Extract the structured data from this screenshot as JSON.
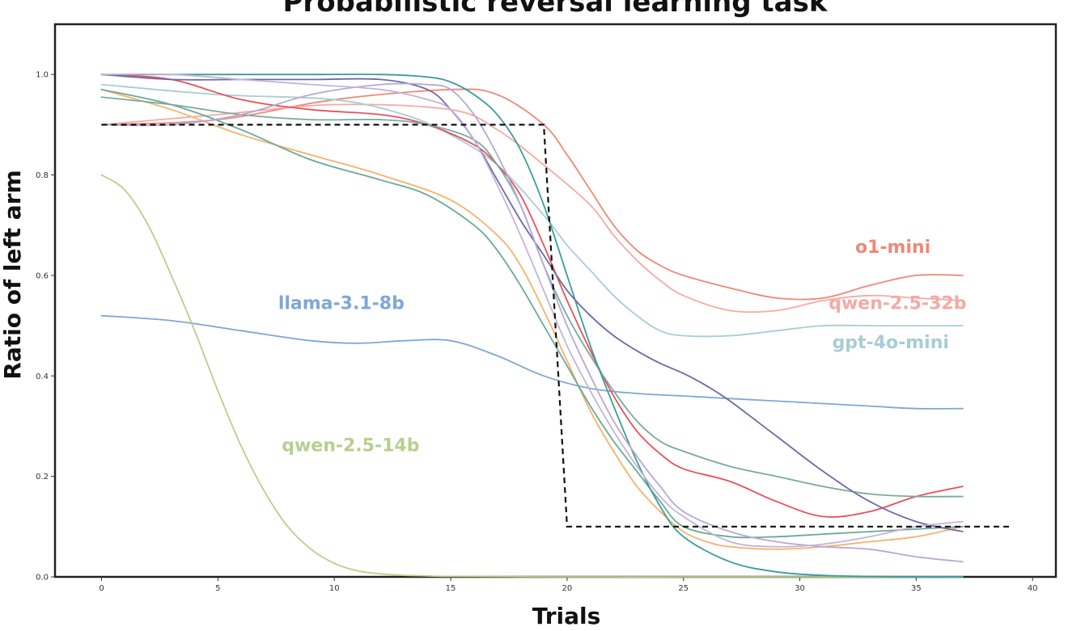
{
  "chart_data": {
    "type": "line",
    "title": "Probabilistic reversal learning task",
    "xlabel": "Trials",
    "ylabel": "Ratio of left arm",
    "xlim": [
      -2,
      41
    ],
    "ylim": [
      0,
      1.1
    ],
    "xticks": [
      0,
      5,
      10,
      15,
      20,
      25,
      30,
      35,
      40
    ],
    "yticks": [
      0.0,
      0.2,
      0.4,
      0.6,
      0.8,
      1.0
    ],
    "xtick_labels": [
      "0",
      "5",
      "10",
      "15",
      "20",
      "25",
      "30",
      "35",
      "40"
    ],
    "ytick_labels": [
      "0.0",
      "0.2",
      "0.4",
      "0.6",
      "0.8",
      "1.0"
    ],
    "grid": false,
    "reference": {
      "style": "dashed",
      "color": "#111111",
      "x": [
        0,
        19,
        20,
        39
      ],
      "y": [
        0.9,
        0.9,
        0.1,
        0.1
      ]
    },
    "series": [
      {
        "name": "o1-mini",
        "color": "#f08878",
        "x": [
          0,
          5,
          10,
          15,
          17,
          19,
          20,
          21,
          22,
          23,
          24,
          25,
          27,
          29,
          31,
          33,
          35,
          37
        ],
        "y": [
          0.9,
          0.91,
          0.95,
          0.97,
          0.96,
          0.9,
          0.84,
          0.77,
          0.7,
          0.65,
          0.62,
          0.6,
          0.575,
          0.555,
          0.555,
          0.58,
          0.6,
          0.6
        ]
      },
      {
        "name": "qwen-2.5-32b",
        "color": "#f4aaa4",
        "x": [
          0,
          5,
          10,
          15,
          17,
          19,
          21,
          22,
          23,
          24,
          25,
          27,
          29,
          31,
          33,
          35,
          37
        ],
        "y": [
          0.9,
          0.92,
          0.94,
          0.93,
          0.89,
          0.82,
          0.74,
          0.68,
          0.63,
          0.59,
          0.56,
          0.53,
          0.53,
          0.55,
          0.56,
          0.555,
          0.55
        ]
      },
      {
        "name": "gpt-4o-mini",
        "color": "#a8cdd4",
        "x": [
          0,
          5,
          10,
          13,
          15,
          17,
          19,
          20,
          21,
          22,
          23,
          24,
          25,
          27,
          29,
          31,
          33,
          35,
          37
        ],
        "y": [
          0.98,
          0.96,
          0.95,
          0.92,
          0.88,
          0.82,
          0.72,
          0.66,
          0.61,
          0.56,
          0.52,
          0.49,
          0.48,
          0.48,
          0.49,
          0.5,
          0.5,
          0.5,
          0.5
        ]
      },
      {
        "name": "llama-3.1-8b",
        "color": "#7fa7d6",
        "x": [
          0,
          3,
          6,
          9,
          11,
          13,
          15,
          17,
          19,
          21,
          23,
          25,
          27,
          29,
          31,
          33,
          35,
          37
        ],
        "y": [
          0.52,
          0.51,
          0.49,
          0.47,
          0.465,
          0.47,
          0.47,
          0.44,
          0.4,
          0.375,
          0.365,
          0.36,
          0.355,
          0.35,
          0.345,
          0.34,
          0.335,
          0.335
        ]
      },
      {
        "name": "qwen-2.5-14b",
        "color": "#b8cf8e",
        "x": [
          0,
          1,
          2,
          3,
          4,
          5,
          6,
          7,
          8,
          9,
          10,
          11,
          12,
          13,
          14,
          15,
          20,
          25,
          30,
          37
        ],
        "y": [
          0.8,
          0.77,
          0.7,
          0.6,
          0.49,
          0.37,
          0.26,
          0.17,
          0.1,
          0.055,
          0.027,
          0.012,
          0.006,
          0.003,
          0.002,
          0.001,
          0.0,
          0.0,
          0.0,
          0.0
        ]
      },
      {
        "name": "",
        "color": "#e8505a",
        "x": [
          0,
          3,
          6,
          9,
          12,
          14,
          16,
          17,
          18,
          19,
          20,
          21,
          22,
          23,
          24,
          25,
          27,
          29,
          31,
          33,
          35,
          37
        ],
        "y": [
          1.0,
          0.99,
          0.95,
          0.93,
          0.92,
          0.9,
          0.86,
          0.82,
          0.76,
          0.66,
          0.55,
          0.45,
          0.36,
          0.29,
          0.245,
          0.215,
          0.19,
          0.15,
          0.12,
          0.13,
          0.16,
          0.18
        ]
      },
      {
        "name": "",
        "color": "#f6b26b",
        "x": [
          0,
          3,
          6,
          9,
          12,
          15,
          17,
          18,
          19,
          20,
          21,
          22,
          23,
          24,
          25,
          26,
          27,
          29,
          31,
          33,
          35,
          37
        ],
        "y": [
          0.97,
          0.93,
          0.88,
          0.84,
          0.8,
          0.75,
          0.68,
          0.62,
          0.53,
          0.43,
          0.33,
          0.25,
          0.18,
          0.13,
          0.09,
          0.07,
          0.06,
          0.055,
          0.06,
          0.07,
          0.08,
          0.1
        ]
      },
      {
        "name": "",
        "color": "#6aaa96",
        "x": [
          0,
          3,
          6,
          9,
          12,
          14,
          16,
          17,
          18,
          19,
          20,
          21,
          22,
          23,
          24,
          25,
          27,
          29,
          31,
          33,
          35,
          37
        ],
        "y": [
          0.97,
          0.94,
          0.89,
          0.83,
          0.79,
          0.76,
          0.7,
          0.65,
          0.58,
          0.5,
          0.42,
          0.34,
          0.27,
          0.21,
          0.15,
          0.1,
          0.08,
          0.08,
          0.085,
          0.09,
          0.095,
          0.1
        ]
      },
      {
        "name": "",
        "color": "#78aaa0",
        "x": [
          0,
          3,
          6,
          9,
          12,
          14,
          16,
          17,
          18,
          19,
          20,
          21,
          22,
          23,
          24,
          25,
          27,
          29,
          31,
          33,
          35,
          37
        ],
        "y": [
          0.955,
          0.94,
          0.92,
          0.91,
          0.91,
          0.9,
          0.87,
          0.82,
          0.74,
          0.62,
          0.52,
          0.44,
          0.37,
          0.31,
          0.27,
          0.25,
          0.22,
          0.2,
          0.18,
          0.165,
          0.16,
          0.16
        ]
      },
      {
        "name": "",
        "color": "#3a9d9b",
        "x": [
          0,
          3,
          6,
          9,
          12,
          14,
          15,
          16,
          17,
          18,
          19,
          20,
          21,
          22,
          23,
          24,
          25,
          27,
          29,
          31,
          33,
          35,
          37
        ],
        "y": [
          1.0,
          1.0,
          1.0,
          1.0,
          1.0,
          0.995,
          0.985,
          0.96,
          0.92,
          0.85,
          0.74,
          0.6,
          0.46,
          0.34,
          0.23,
          0.14,
          0.08,
          0.03,
          0.01,
          0.003,
          0.001,
          0.0,
          0.0
        ]
      },
      {
        "name": "",
        "color": "#6e6aa8",
        "x": [
          0,
          3,
          6,
          9,
          12,
          14,
          15,
          16,
          17,
          18,
          19,
          20,
          21,
          22,
          23,
          24,
          25,
          26,
          27,
          29,
          31,
          33,
          35,
          37
        ],
        "y": [
          1.0,
          0.99,
          0.99,
          0.99,
          0.99,
          0.97,
          0.93,
          0.87,
          0.79,
          0.71,
          0.64,
          0.57,
          0.52,
          0.48,
          0.45,
          0.425,
          0.405,
          0.38,
          0.35,
          0.28,
          0.21,
          0.15,
          0.11,
          0.09
        ]
      },
      {
        "name": "",
        "color": "#b8a8d2",
        "x": [
          0,
          3,
          6,
          9,
          12,
          14,
          15,
          16,
          17,
          18,
          19,
          20,
          21,
          22,
          23,
          24,
          25,
          27,
          29,
          31,
          33,
          35,
          37
        ],
        "y": [
          0.9,
          0.9,
          0.92,
          0.96,
          0.98,
          0.98,
          0.97,
          0.92,
          0.84,
          0.74,
          0.62,
          0.5,
          0.4,
          0.31,
          0.24,
          0.18,
          0.13,
          0.09,
          0.07,
          0.06,
          0.055,
          0.04,
          0.03
        ]
      },
      {
        "name": "",
        "color": "#c4b4d8",
        "x": [
          0,
          3,
          6,
          9,
          12,
          14,
          15,
          16,
          17,
          18,
          19,
          20,
          21,
          22,
          23,
          24,
          25,
          27,
          29,
          31,
          33,
          35,
          37
        ],
        "y": [
          1.0,
          1.0,
          0.99,
          0.98,
          0.97,
          0.95,
          0.93,
          0.87,
          0.78,
          0.68,
          0.57,
          0.46,
          0.37,
          0.29,
          0.22,
          0.16,
          0.12,
          0.07,
          0.06,
          0.065,
          0.08,
          0.1,
          0.11
        ]
      }
    ],
    "series_labels": [
      {
        "text": "o1-mini",
        "color": "#f08878",
        "x": 34.0,
        "y": 0.645
      },
      {
        "text": "qwen-2.5-32b",
        "color": "#f4aaa4",
        "x": 34.2,
        "y": 0.533
      },
      {
        "text": "gpt-4o-mini",
        "color": "#a8cdd4",
        "x": 33.9,
        "y": 0.455
      },
      {
        "text": "llama-3.1-8b",
        "color": "#7fa7d6",
        "x": 10.3,
        "y": 0.533
      },
      {
        "text": "qwen-2.5-14b",
        "color": "#b8cf8e",
        "x": 10.7,
        "y": 0.25
      }
    ]
  }
}
